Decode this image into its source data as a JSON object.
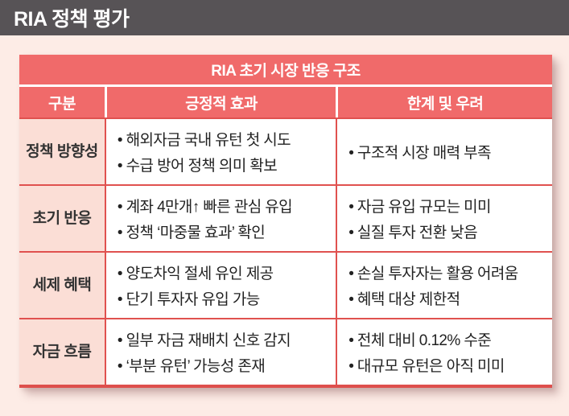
{
  "page": {
    "title": "RIA 정책 평가",
    "title_bar_color": "#575356",
    "background_color": "#fdece6"
  },
  "table": {
    "title": "RIA 초기 시장 반응 구조",
    "accent_color": "#f06a6a",
    "grid_color": "#e0514f",
    "category_bg_color": "#fbded6",
    "columns": [
      "구분",
      "긍정적 효과",
      "한계 및 우려"
    ],
    "rows": [
      {
        "category": "정책 방향성",
        "positive": [
          "• 해외자금 국내 유턴 첫 시도",
          "• 수급 방어 정책 의미 확보"
        ],
        "concerns": [
          "• 구조적 시장 매력 부족"
        ]
      },
      {
        "category": "초기 반응",
        "positive": [
          "• 계좌 4만개↑ 빠른 관심 유입",
          "• 정책 ‘마중물 효과’ 확인"
        ],
        "concerns": [
          "• 자금 유입 규모는 미미",
          "• 실질 투자 전환 낮음"
        ]
      },
      {
        "category": "세제 혜택",
        "positive": [
          "• 양도차익 절세 유인 제공",
          "• 단기 투자자 유입 가능"
        ],
        "concerns": [
          "• 손실 투자자는 활용 어려움",
          "• 혜택 대상 제한적"
        ]
      },
      {
        "category": "자금 흐름",
        "positive": [
          "• 일부 자금 재배치 신호 감지",
          "• ‘부분 유턴’ 가능성 존재"
        ],
        "concerns": [
          "• 전체 대비 0.12% 수준",
          "• 대규모 유턴은 아직 미미"
        ]
      }
    ]
  }
}
